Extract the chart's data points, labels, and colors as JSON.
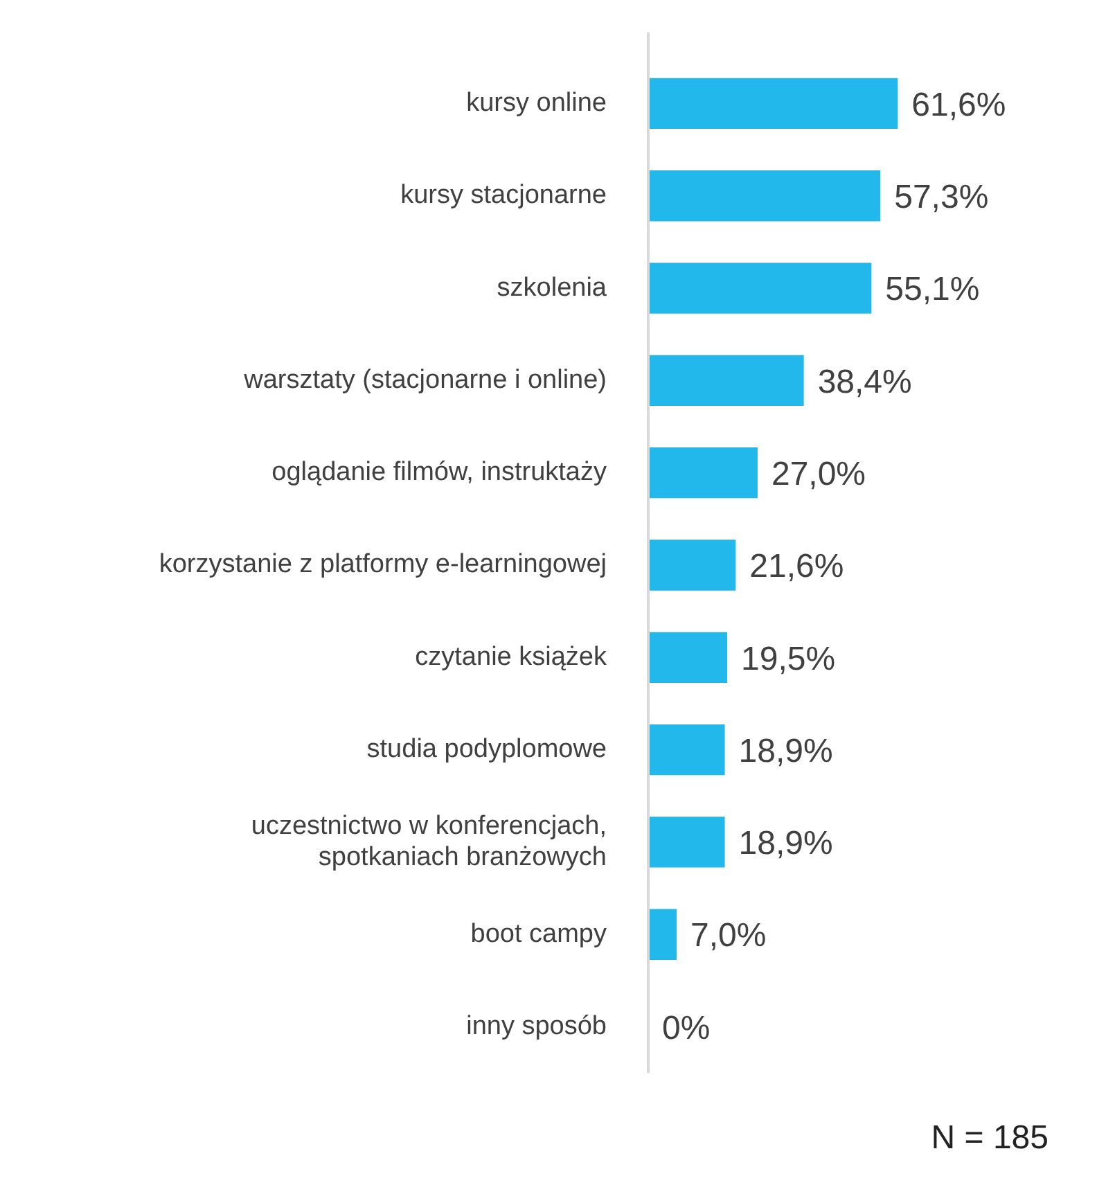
{
  "chart_data": {
    "type": "bar",
    "orientation": "horizontal",
    "categories": [
      "kursy online",
      "kursy stacjonarne",
      "szkolenia",
      "warsztaty (stacjonarne i online)",
      "oglądanie filmów, instruktaży",
      "korzystanie z platformy e-learningowej",
      "czytanie książek",
      "studia podyplomowe",
      "uczestnictwo w konferencjach,\nspotkaniach branżowych",
      "boot campy",
      "inny sposób"
    ],
    "values": [
      61.6,
      57.3,
      55.1,
      38.4,
      27.0,
      21.6,
      19.5,
      18.9,
      18.9,
      7.0,
      0
    ],
    "value_labels": [
      "61,6%",
      "57,3%",
      "55,1%",
      "38,4%",
      "27,0%",
      "21,6%",
      "19,5%",
      "18,9%",
      "18,9%",
      "7,0%",
      "0%"
    ],
    "color": "#22b8ec",
    "annotations": [
      "N = 185"
    ],
    "legend": false
  }
}
